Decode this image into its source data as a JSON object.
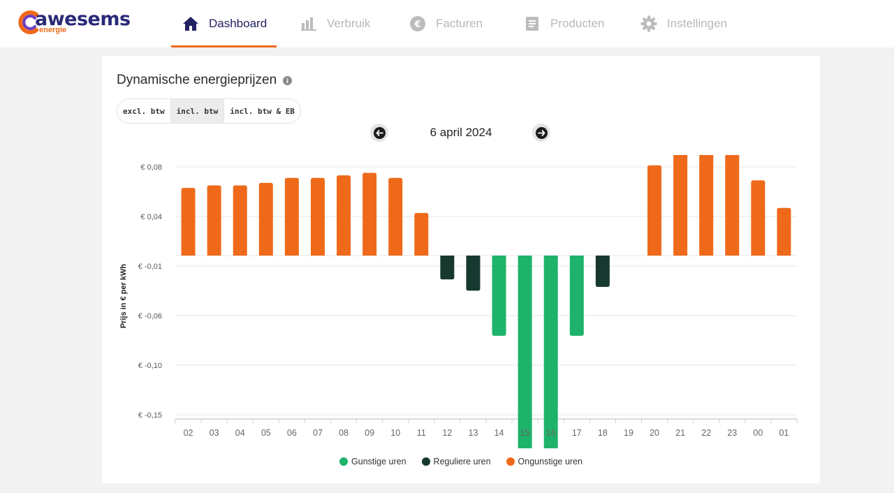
{
  "brand": {
    "name": "awesems",
    "sub": "energie"
  },
  "nav": {
    "items": [
      {
        "label": "Dashboard",
        "icon": "home-icon",
        "active": true
      },
      {
        "label": "Verbruik",
        "icon": "bar-chart-icon",
        "active": false
      },
      {
        "label": "Facturen",
        "icon": "euro-icon",
        "active": false
      },
      {
        "label": "Producten",
        "icon": "document-icon",
        "active": false
      },
      {
        "label": "Instellingen",
        "icon": "gear-icon",
        "active": false
      }
    ]
  },
  "panel": {
    "title": "Dynamische energieprijzen",
    "tax_options": [
      "excl. btw",
      "incl. btw",
      "incl. btw & EB"
    ],
    "tax_selected": "incl. btw",
    "date": "6 april 2024"
  },
  "colors": {
    "accent": "#ee6a1a",
    "navy": "#232363",
    "favorable": "#1eb36a",
    "regular": "#17382f",
    "unfavorable": "#ee6a1a"
  },
  "chart_data": {
    "type": "bar",
    "ylabel": "Prijs in € per kWh",
    "y_ticks": [
      "€ 0,08",
      "€ 0,04",
      "€ -0,01",
      "€ -0,06",
      "€ -0,10",
      "€ -0,15"
    ],
    "ylim": [
      -0.16,
      0.09
    ],
    "grid": true,
    "legend_position": "bottom",
    "categories": [
      "02",
      "03",
      "04",
      "05",
      "06",
      "07",
      "08",
      "09",
      "10",
      "11",
      "12",
      "13",
      "14",
      "15",
      "16",
      "17",
      "18",
      "19",
      "20",
      "21",
      "22",
      "23",
      "00",
      "01"
    ],
    "values": [
      0.054,
      0.056,
      0.056,
      0.058,
      0.062,
      0.062,
      0.064,
      0.066,
      0.062,
      0.034,
      -0.019,
      -0.028,
      -0.064,
      -0.155,
      -0.161,
      -0.064,
      -0.025,
      0.0,
      0.072,
      0.089,
      0.084,
      0.084,
      0.06,
      0.038
    ],
    "categories_class": [
      "Onguntige",
      "Onguntige",
      "Onguntige",
      "Onguntige",
      "Onguntige",
      "Onguntige",
      "Onguntige",
      "Onguntige",
      "Onguntige",
      "Onguntige",
      "Reguliere",
      "Reguliere",
      "Gunstige",
      "Gunstige",
      "Gunstige",
      "Gunstige",
      "Reguliere",
      "Reguliere",
      "Onguntige",
      "Onguntige",
      "Onguntige",
      "Onguntige",
      "Onguntige",
      "Onguntige"
    ],
    "series": [
      {
        "name": "Gunstige uren",
        "color": "#1eb36a"
      },
      {
        "name": "Reguliere uren",
        "color": "#17382f"
      },
      {
        "name": "Ongunstige uren",
        "color": "#ee6a1a"
      }
    ]
  }
}
